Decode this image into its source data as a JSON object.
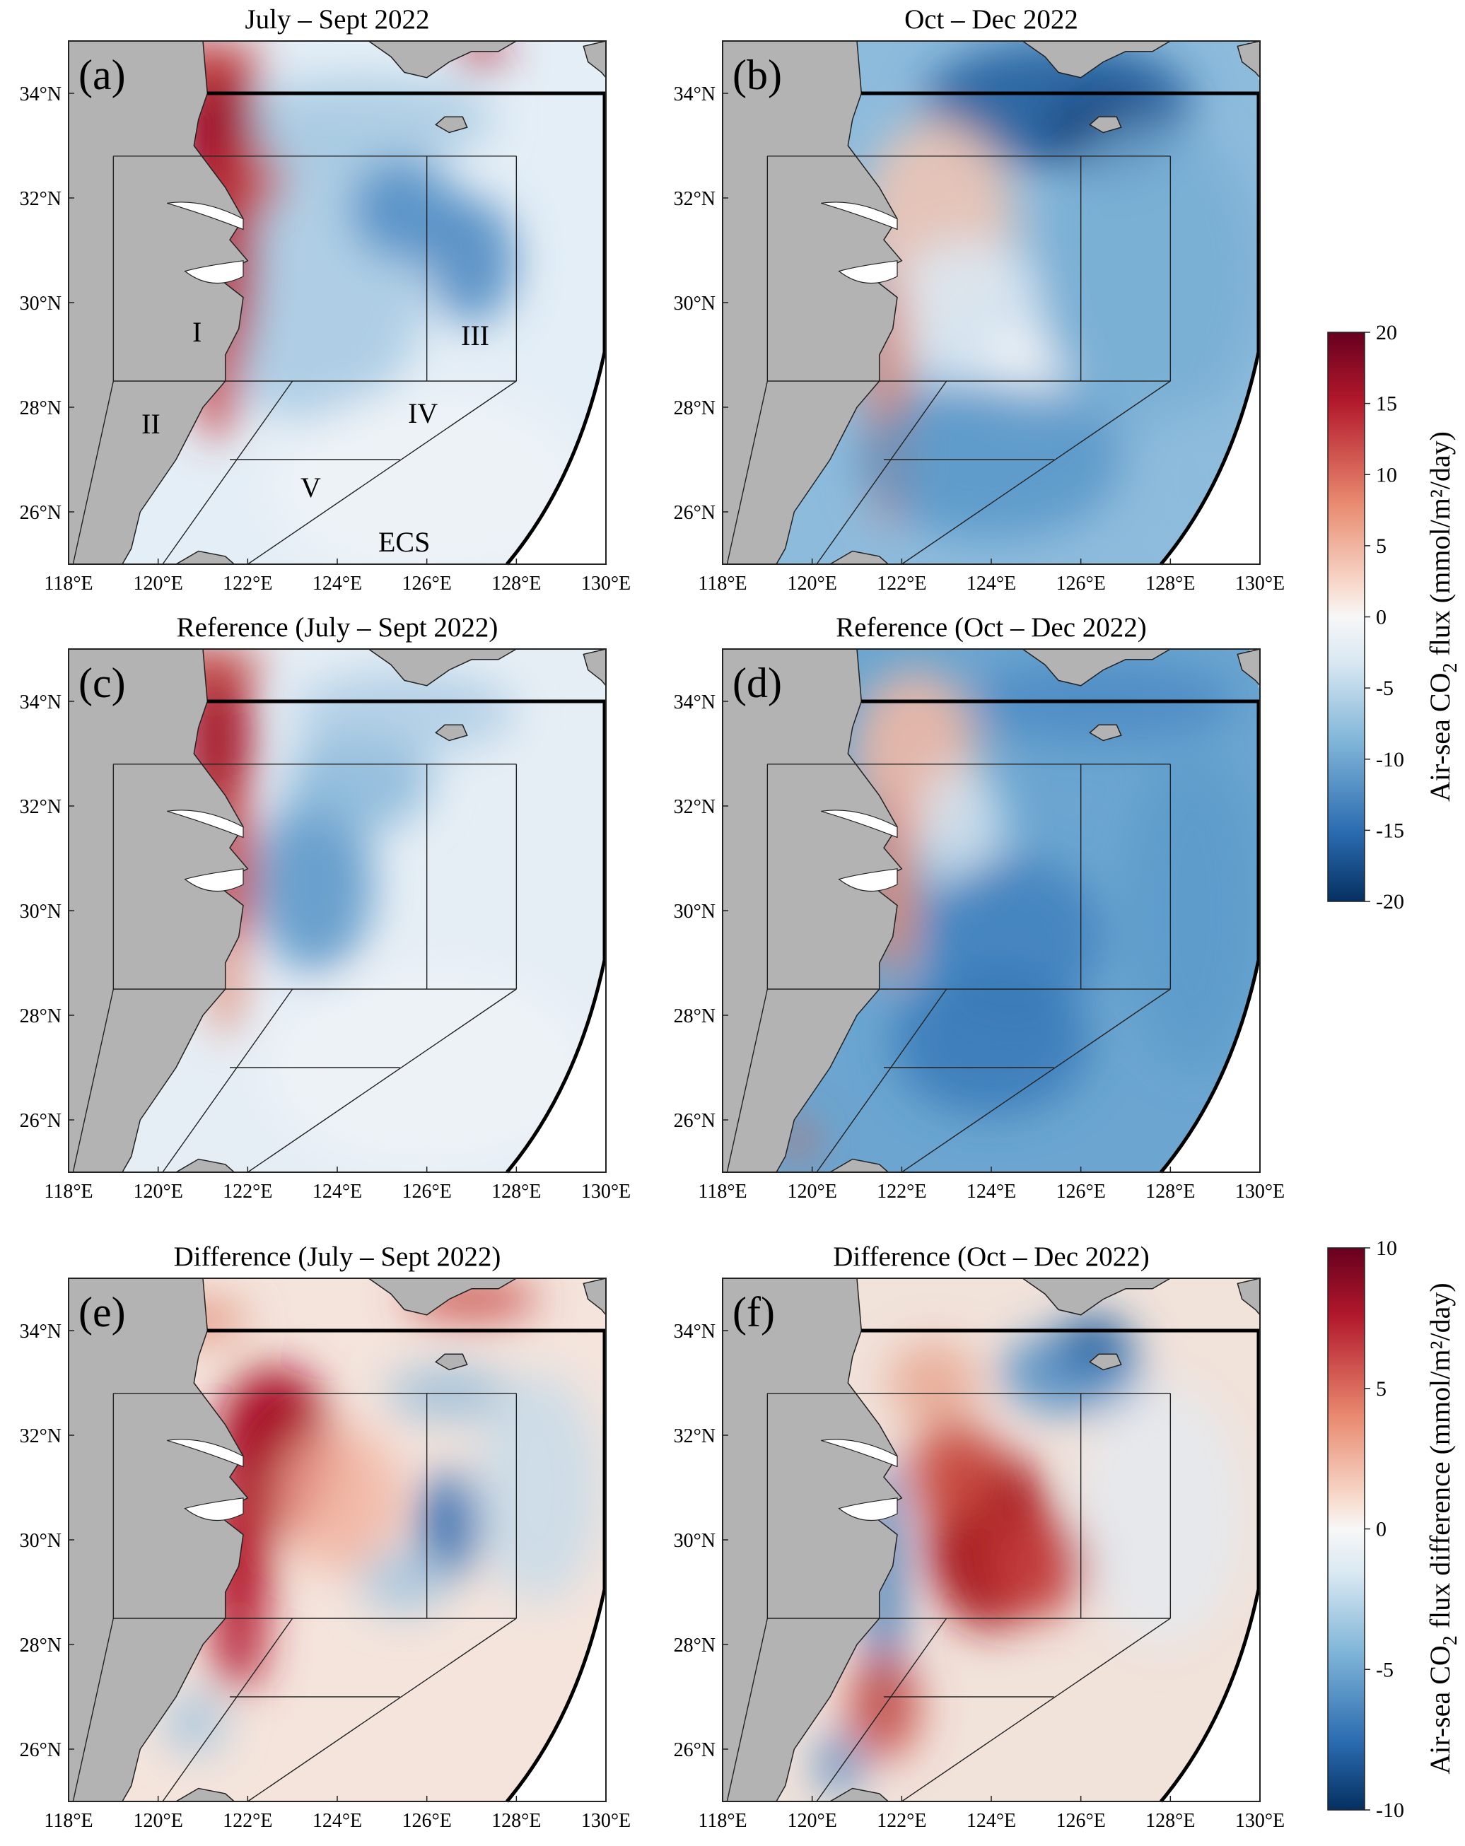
{
  "panels": [
    {
      "id": "a",
      "letter": "(a)",
      "title": "July – Sept 2022",
      "pattern": "summer_flux"
    },
    {
      "id": "b",
      "letter": "(b)",
      "title": "Oct – Dec 2022",
      "pattern": "autumn_flux"
    },
    {
      "id": "c",
      "letter": "(c)",
      "title": "Reference (July – Sept 2022)",
      "pattern": "ref_summer"
    },
    {
      "id": "d",
      "letter": "(d)",
      "title": "Reference (Oct – Dec 2022)",
      "pattern": "ref_autumn"
    },
    {
      "id": "e",
      "letter": "(e)",
      "title": "Difference (July – Sept 2022)",
      "pattern": "diff_summer"
    },
    {
      "id": "f",
      "letter": "(f)",
      "title": "Difference (Oct – Dec 2022)",
      "pattern": "diff_autumn"
    }
  ],
  "axes": {
    "lon_range": [
      118,
      130
    ],
    "lat_range": [
      25,
      35
    ],
    "lon_ticks": [
      "118°E",
      "120°E",
      "122°E",
      "124°E",
      "126°E",
      "128°E",
      "130°E"
    ],
    "lat_ticks": [
      "26°N",
      "28°N",
      "30°N",
      "32°N",
      "34°N"
    ]
  },
  "region_labels": {
    "I": "I",
    "II": "II",
    "III": "III",
    "IV": "IV",
    "V": "V",
    "ECS": "ECS"
  },
  "colorbars": [
    {
      "id": "flux",
      "label_pre": "Air-sea CO",
      "label_sub": "2",
      "label_post": " flux (mmol/m²/day)",
      "ticks": [
        "20",
        "15",
        "10",
        "5",
        "0",
        "-5",
        "-10",
        "-15",
        "-20"
      ],
      "range": [
        -20,
        20
      ]
    },
    {
      "id": "diff",
      "label_pre": "Air-sea CO",
      "label_sub": "2",
      "label_post": " flux difference (mmol/m²/day)",
      "ticks": [
        "10",
        "5",
        "0",
        "-5",
        "-10"
      ],
      "range": [
        -10,
        10
      ]
    }
  ],
  "colors": {
    "land": "#b3b3b3",
    "red_dark": "#8a0c1e",
    "red": "#d6604d",
    "blue": "#4393c3",
    "blue_dark": "#0b3a78",
    "neutral": "#f2f5f7"
  }
}
